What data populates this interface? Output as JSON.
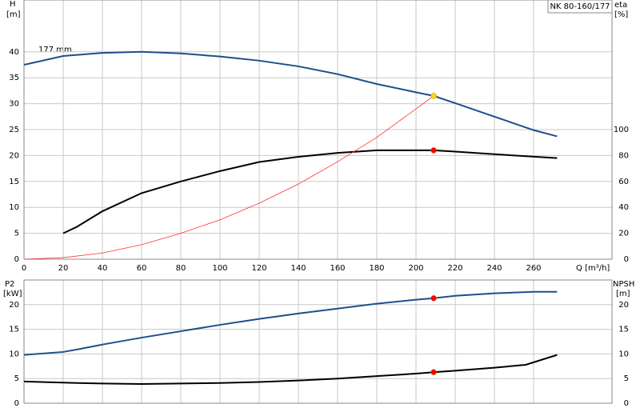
{
  "chart_data": [
    {
      "type": "line",
      "title": "NK 80-160/177",
      "annotation": "177 mm",
      "ylabel": "H",
      "yunit": "[m]",
      "y2label": "eta",
      "y2unit": "[%]",
      "xlabel": "Q [m³/h]",
      "xlim": [
        0,
        300
      ],
      "xticks": [
        0,
        20,
        40,
        60,
        80,
        100,
        120,
        140,
        160,
        180,
        200,
        220,
        240,
        260
      ],
      "xtick_labels": true,
      "ylim": [
        0,
        50
      ],
      "yticks": [
        0,
        5,
        10,
        15,
        20,
        25,
        30,
        35,
        40
      ],
      "y2lim": [
        0,
        200
      ],
      "y2ticks": [
        0,
        20,
        40,
        60,
        80,
        100
      ],
      "grid": true,
      "series": [
        {
          "style": "line",
          "color": "#1f4e8c",
          "width": 2,
          "x": [
            0,
            20,
            40,
            60,
            80,
            100,
            120,
            140,
            160,
            180,
            200,
            209,
            220,
            240,
            260,
            272
          ],
          "values": [
            37.5,
            39.2,
            39.8,
            40,
            39.7,
            39.1,
            38.3,
            37.2,
            35.7,
            33.8,
            32.2,
            31.5,
            30.1,
            27.5,
            24.9,
            23.7
          ]
        },
        {
          "style": "line",
          "color": "#000000",
          "width": 2,
          "axis": "y2",
          "x": [
            20,
            27,
            40,
            60,
            80,
            100,
            120,
            140,
            160,
            180,
            200,
            209,
            220,
            240,
            272
          ],
          "values": [
            20,
            25,
            37,
            51,
            60,
            68,
            75,
            79,
            82,
            84,
            84,
            84,
            83,
            81,
            78
          ]
        },
        {
          "style": "line",
          "color": "#ff3030",
          "width": 0.8,
          "x": [
            0,
            20,
            40,
            60,
            80,
            100,
            120,
            140,
            160,
            180,
            200,
            209
          ],
          "values": [
            0,
            0.3,
            1.2,
            2.8,
            5,
            7.6,
            10.8,
            14.5,
            18.8,
            23.5,
            29,
            31.5
          ]
        },
        {
          "style": "marker",
          "color": "#ffd700",
          "x": [
            209
          ],
          "values": [
            31.5
          ]
        },
        {
          "style": "marker",
          "color": "#ff0000",
          "axis": "y2",
          "x": [
            209
          ],
          "values": [
            84
          ]
        }
      ]
    },
    {
      "type": "line",
      "ylabel": "P2",
      "yunit": "[kW]",
      "y2label": "NPSH",
      "y2unit": "[m]",
      "xlim": [
        0,
        300
      ],
      "xticks": [
        0,
        20,
        40,
        60,
        80,
        100,
        120,
        140,
        160,
        180,
        200,
        220,
        240,
        260
      ],
      "xtick_labels": false,
      "ylim": [
        0,
        25
      ],
      "yticks": [
        0,
        5,
        10,
        15,
        20
      ],
      "y2lim": [
        0,
        25
      ],
      "y2ticks": [
        0,
        5,
        10,
        15,
        20
      ],
      "grid": true,
      "series": [
        {
          "style": "line",
          "color": "#1f4e8c",
          "width": 2,
          "x": [
            0,
            20,
            27,
            40,
            60,
            80,
            100,
            120,
            140,
            160,
            180,
            200,
            209,
            220,
            240,
            260,
            272
          ],
          "values": [
            9.8,
            10.4,
            10.9,
            11.9,
            13.3,
            14.6,
            15.9,
            17.1,
            18.2,
            19.2,
            20.2,
            21,
            21.3,
            21.8,
            22.3,
            22.6,
            22.6
          ]
        },
        {
          "style": "line",
          "color": "#000000",
          "width": 2,
          "axis": "y2",
          "x": [
            0,
            27,
            40,
            60,
            80,
            100,
            120,
            140,
            160,
            180,
            200,
            209,
            220,
            240,
            256,
            272
          ],
          "values": [
            4.4,
            4.1,
            4.0,
            3.9,
            4.0,
            4.1,
            4.3,
            4.6,
            5.0,
            5.5,
            6.0,
            6.3,
            6.6,
            7.2,
            7.8,
            9.8
          ]
        },
        {
          "style": "marker",
          "color": "#ff0000",
          "x": [
            209
          ],
          "values": [
            21.3
          ]
        },
        {
          "style": "marker",
          "color": "#ff0000",
          "axis": "y2",
          "x": [
            209
          ],
          "values": [
            6.3
          ]
        }
      ]
    }
  ]
}
